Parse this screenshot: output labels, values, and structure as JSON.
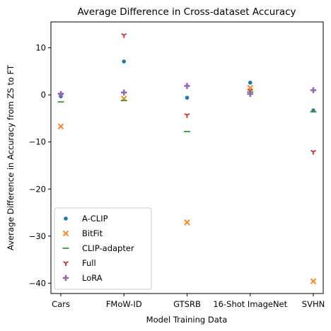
{
  "chart_data": {
    "type": "scatter",
    "title": "Average Difference in Cross-dataset Accuracy",
    "xlabel": "Model Training Data",
    "ylabel": "Average Difference in Accuracy from ZS to FT",
    "categories": [
      "Cars",
      "FMoW-ID",
      "GTSRB",
      "16-Shot ImageNet",
      "SVHN"
    ],
    "ylim": [
      -42.2,
      15.5
    ],
    "yticks": [
      -40,
      -30,
      -20,
      -10,
      0,
      10
    ],
    "grid": false,
    "legend_position": "lower-left",
    "series": [
      {
        "name": "A-CLIP",
        "marker": "dot",
        "color": "#1f77b4",
        "values": [
          -0.3,
          7.1,
          -0.6,
          2.6,
          -3.3
        ]
      },
      {
        "name": "BitFit",
        "marker": "x",
        "color": "#ff7f0e",
        "values": [
          -6.7,
          -0.8,
          -27.1,
          1.5,
          -39.6
        ]
      },
      {
        "name": "CLIP-adapter",
        "marker": "hline",
        "color": "#2ca02c",
        "values": [
          -1.5,
          -1.2,
          -7.8,
          0.6,
          -3.6
        ]
      },
      {
        "name": "Full",
        "marker": "tri_down",
        "color": "#d62728",
        "values": [
          0.1,
          12.7,
          -4.3,
          0.9,
          -12.1
        ]
      },
      {
        "name": "LoRA",
        "marker": "plus",
        "color": "#9467bd",
        "values": [
          0.2,
          0.5,
          1.9,
          0.2,
          1.0
        ]
      }
    ]
  }
}
